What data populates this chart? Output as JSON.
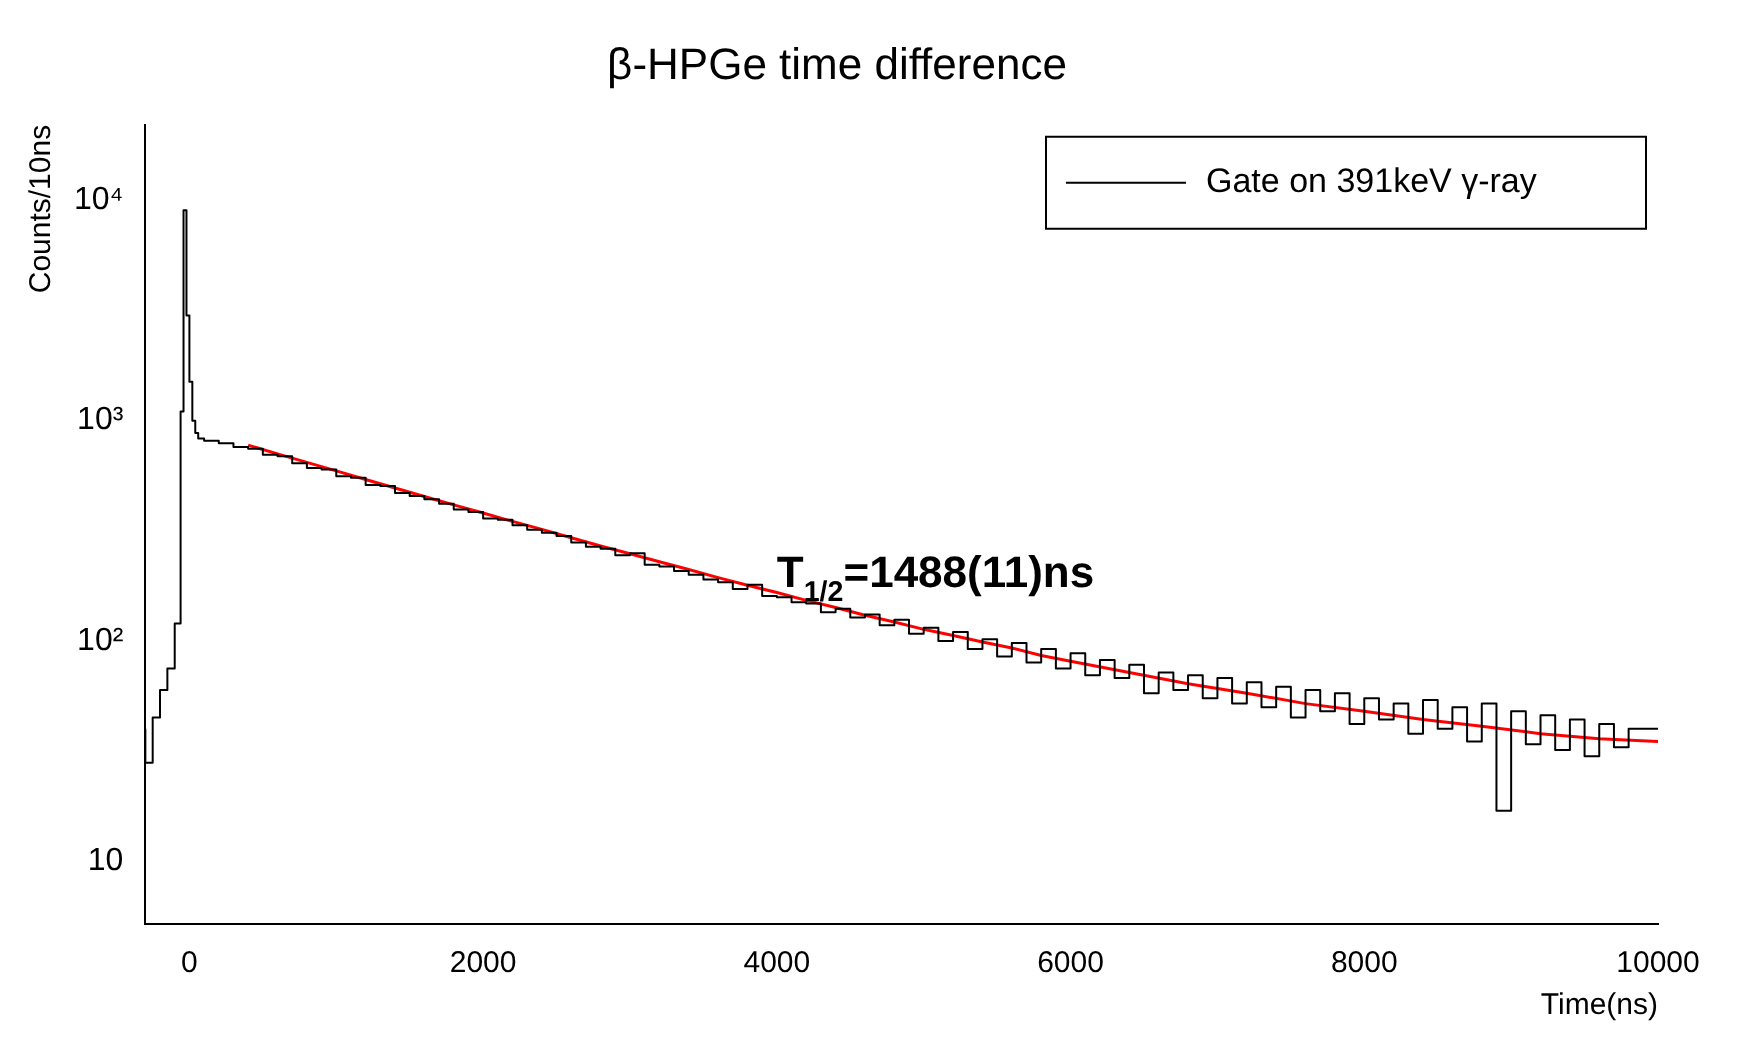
{
  "chart_data": {
    "type": "step",
    "title": "β-HPGe time difference",
    "xlabel": "Time(ns)",
    "ylabel": "Counts/10ns",
    "log": "y",
    "grid": false,
    "legend": "top right",
    "marker": "none",
    "xlim": [
      -300,
      10000
    ],
    "xticks": [
      0,
      2000,
      4000,
      6000,
      8000,
      10000
    ],
    "ylim": [
      5.2,
      22000
    ],
    "yticks": [
      10,
      {
        "value": 100,
        "label": "10²"
      },
      {
        "value": 1000,
        "label": "10³"
      },
      {
        "value": 10000,
        "label": "10⁴"
      }
    ],
    "annotations": [
      {
        "text": "T$_{1/2}$=1488(11)ns",
        "x": 4000,
        "y": 175
      }
    ],
    "series": [
      {
        "name": "Gate on 391keV γ-ray",
        "color": "#000000",
        "x": [
          -300,
          -250,
          -200,
          -150,
          -100,
          -60,
          -40,
          -20,
          0,
          20,
          40,
          60,
          100,
          200,
          300,
          400,
          500,
          600,
          700,
          800,
          900,
          1000,
          1100,
          1200,
          1300,
          1400,
          1500,
          1600,
          1700,
          1800,
          1900,
          2000,
          2100,
          2200,
          2300,
          2400,
          2500,
          2600,
          2700,
          2800,
          2900,
          3000,
          3100,
          3200,
          3300,
          3400,
          3500,
          3600,
          3700,
          3800,
          3900,
          4000,
          4100,
          4200,
          4300,
          4400,
          4500,
          4600,
          4700,
          4800,
          4900,
          5000,
          5100,
          5200,
          5300,
          5400,
          5500,
          5600,
          5700,
          5800,
          5900,
          6000,
          6100,
          6200,
          6300,
          6400,
          6500,
          6600,
          6700,
          6800,
          6900,
          7000,
          7100,
          7200,
          7300,
          7400,
          7500,
          7600,
          7700,
          7800,
          7900,
          8000,
          8100,
          8200,
          8300,
          8400,
          8500,
          8600,
          8700,
          8800,
          8900,
          9000,
          9100,
          9200,
          9300,
          9400,
          9500,
          9600,
          9700,
          9800,
          9900,
          10000
        ],
        "values": [
          40,
          28,
          45,
          60,
          75,
          120,
          1100,
          9000,
          3000,
          1500,
          1000,
          880,
          830,
          810,
          790,
          760,
          745,
          700,
          690,
          640,
          610,
          600,
          560,
          550,
          510,
          505,
          470,
          455,
          440,
          420,
          395,
          385,
          360,
          355,
          335,
          320,
          310,
          300,
          280,
          268,
          262,
          245,
          250,
          222,
          218,
          208,
          200,
          190,
          185,
          172,
          180,
          160,
          158,
          150,
          148,
          135,
          140,
          128,
          132,
          118,
          125,
          108,
          115,
          100,
          110,
          92,
          102,
          85,
          98,
          80,
          92,
          75,
          88,
          70,
          82,
          68,
          78,
          58,
          72,
          60,
          70,
          55,
          68,
          52,
          65,
          50,
          62,
          45,
          60,
          48,
          58,
          42,
          55,
          44,
          52,
          38,
          54,
          40,
          50,
          35,
          52,
          17,
          48,
          34,
          46,
          32,
          44,
          30,
          42,
          33,
          40,
          40
        ]
      },
      {
        "type": "line",
        "color": "#ff0000",
        "x": [
          400,
          600,
          800,
          1000,
          1200,
          1400,
          1600,
          1800,
          2000,
          2200,
          2400,
          2600,
          2800,
          3000,
          3200,
          3400,
          3600,
          3800,
          4000,
          4200,
          4400,
          4600,
          4800,
          5000,
          5200,
          5400,
          5600,
          5800,
          6000,
          6400,
          6800,
          7200,
          7600,
          8000,
          8400,
          8800,
          9200,
          9600,
          10000
        ],
        "values": [
          774,
          707,
          647,
          592,
          541,
          495,
          453,
          415,
          381,
          349,
          321,
          294,
          270,
          249,
          229,
          211,
          194,
          179,
          166,
          153,
          142,
          131,
          122,
          113,
          106,
          99,
          93,
          86,
          81,
          72,
          64,
          58,
          52,
          48,
          44,
          41,
          38,
          36,
          35
        ]
      }
    ]
  }
}
